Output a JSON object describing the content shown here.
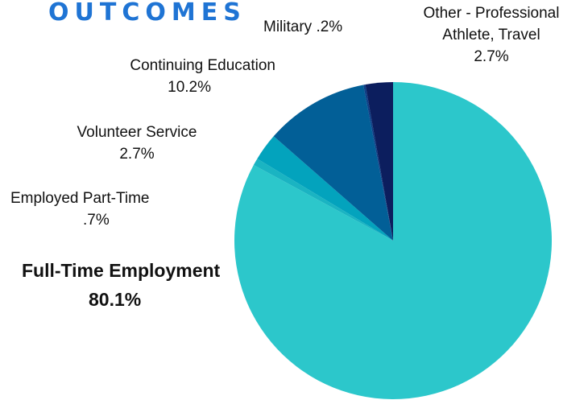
{
  "title": "OUTCOMES",
  "chart_data": {
    "type": "pie",
    "slices": [
      {
        "name": "Full-Time Employment",
        "label": "80.1%",
        "value": 80.1,
        "color": "#2cc7cb"
      },
      {
        "name": "Employed Part-Time",
        "label": ".7%",
        "value": 0.7,
        "color": "#1ab4c2"
      },
      {
        "name": "Volunteer Service",
        "label": "2.7%",
        "value": 2.7,
        "color": "#03a3bd"
      },
      {
        "name": "Continuing Education",
        "label": "10.2%",
        "value": 10.2,
        "color": "#025f97"
      },
      {
        "name": "Military",
        "label": ".2%",
        "value": 0.2,
        "color": "#0e3f86"
      },
      {
        "name": "Other - Professional Athlete, Travel",
        "name_line1": "Other - Professional",
        "name_line2": "Athlete, Travel",
        "label": "2.7%",
        "value": 2.7,
        "color": "#0c1e5e"
      }
    ]
  }
}
